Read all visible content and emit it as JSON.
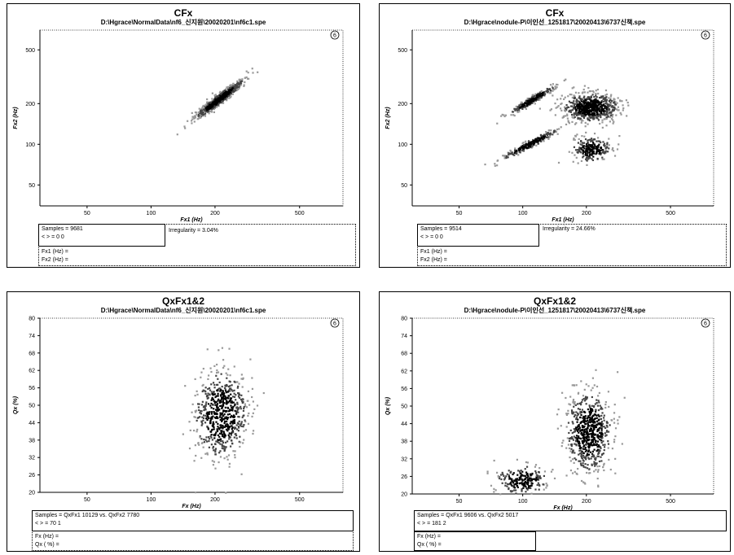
{
  "panels": [
    {
      "title": "CFx",
      "subtitle": "D:\\Hgrace\\NormalData\\nf6_신지원\\20020201\\nf6c1.spe",
      "badge": "6",
      "chart_data": {
        "type": "scatter",
        "x_scale": "log",
        "y_scale": "log",
        "xlim": [
          30,
          800
        ],
        "ylim": [
          35,
          700
        ],
        "xticks": [
          "50",
          "100",
          "200",
          "500"
        ],
        "yticks": [
          "50",
          "100",
          "200",
          "500"
        ],
        "xlabel": "Fx1 (Hz)",
        "ylabel": "Fx2 (Hz)",
        "clusters": [
          {
            "x_range": [
              160,
              270
            ],
            "y_range": [
              160,
              300
            ],
            "shape": "diagonal",
            "density": "dense"
          }
        ]
      },
      "info": {
        "samples": "Samples = 9681",
        "mean": "< > = 0  0",
        "irregularity": "Irregularity = 3.04%",
        "row1": "Fx1 (Hz) = ",
        "row2": "Fx2 (Hz) = "
      }
    },
    {
      "title": "CFx",
      "subtitle": "D:\\Hgrace\\nodule-P\\이인선_1251817\\20020413\\6737신책.spe",
      "badge": "6",
      "chart_data": {
        "type": "scatter",
        "x_scale": "log",
        "y_scale": "log",
        "xlim": [
          30,
          800
        ],
        "ylim": [
          35,
          700
        ],
        "xticks": [
          "50",
          "100",
          "200",
          "500"
        ],
        "yticks": [
          "50",
          "100",
          "200",
          "500"
        ],
        "xlabel": "Fx1 (Hz)",
        "ylabel": "Fx2 (Hz)",
        "clusters": [
          {
            "x_range": [
              155,
              280
            ],
            "y_range": [
              150,
              240
            ],
            "shape": "blob",
            "density": "dense"
          },
          {
            "x_range": [
              85,
              140
            ],
            "y_range": [
              170,
              270
            ],
            "shape": "diagonal",
            "density": "medium"
          },
          {
            "x_range": [
              80,
              145
            ],
            "y_range": [
              80,
              130
            ],
            "shape": "diagonal",
            "density": "medium"
          },
          {
            "x_range": [
              170,
              260
            ],
            "y_range": [
              75,
              115
            ],
            "shape": "blob",
            "density": "medium"
          }
        ]
      },
      "info": {
        "samples": "Samples = 9514",
        "mean": "< > = 0  0",
        "irregularity": "Irregularity = 24.66%",
        "row1": "Fx1 (Hz) = ",
        "row2": "Fx2 (Hz) = "
      }
    },
    {
      "title": "QxFx1&2",
      "subtitle": "D:\\Hgrace\\NormalData\\nf6_신지원\\20020201\\nf6c1.spe",
      "badge": "6",
      "chart_data": {
        "type": "scatter",
        "x_scale": "log",
        "y_scale": "linear",
        "xlim": [
          30,
          800
        ],
        "ylim": [
          20,
          80
        ],
        "xticks": [
          "50",
          "100",
          "200",
          "500"
        ],
        "yticks": [
          "20",
          "26",
          "32",
          "38",
          "44",
          "50",
          "56",
          "62",
          "68",
          "74",
          "80"
        ],
        "xlabel": "Fx (Hz)",
        "ylabel": "Qx (%)",
        "clusters": [
          {
            "x_range": [
              160,
              280
            ],
            "y_range": [
              32,
              62
            ],
            "shape": "blob",
            "density": "dense"
          }
        ]
      },
      "info": {
        "samples": "Samples = QxFx1 10129  vs. QxFx2 7780",
        "mean": "< > = 70  1",
        "irregularity": "",
        "row1": "Fx (Hz) = ",
        "row2": "Qx ( %) = "
      }
    },
    {
      "title": "QxFx1&2",
      "subtitle": "D:\\Hgrace\\nodule-P\\이인선_1251817\\20020413\\6737신책.spe",
      "badge": "6",
      "chart_data": {
        "type": "scatter",
        "x_scale": "log",
        "y_scale": "linear",
        "xlim": [
          30,
          800
        ],
        "ylim": [
          20,
          80
        ],
        "xticks": [
          "50",
          "100",
          "200",
          "500"
        ],
        "yticks": [
          "20",
          "26",
          "32",
          "38",
          "44",
          "50",
          "56",
          "62",
          "68",
          "74",
          "80"
        ],
        "xlabel": "Fx (Hz)",
        "ylabel": "Qx (%)",
        "clusters": [
          {
            "x_range": [
              160,
              260
            ],
            "y_range": [
              28,
              55
            ],
            "shape": "blob",
            "density": "dense"
          },
          {
            "x_range": [
              75,
              130
            ],
            "y_range": [
              20,
              30
            ],
            "shape": "blob",
            "density": "medium"
          }
        ]
      },
      "info": {
        "samples": "Samples = QxFx1 9606  vs. QxFx2 5017",
        "mean": "< > = 181  2",
        "irregularity": "",
        "row1": "Fx (Hz) = ",
        "row2": "Qx ( %) = "
      }
    }
  ]
}
